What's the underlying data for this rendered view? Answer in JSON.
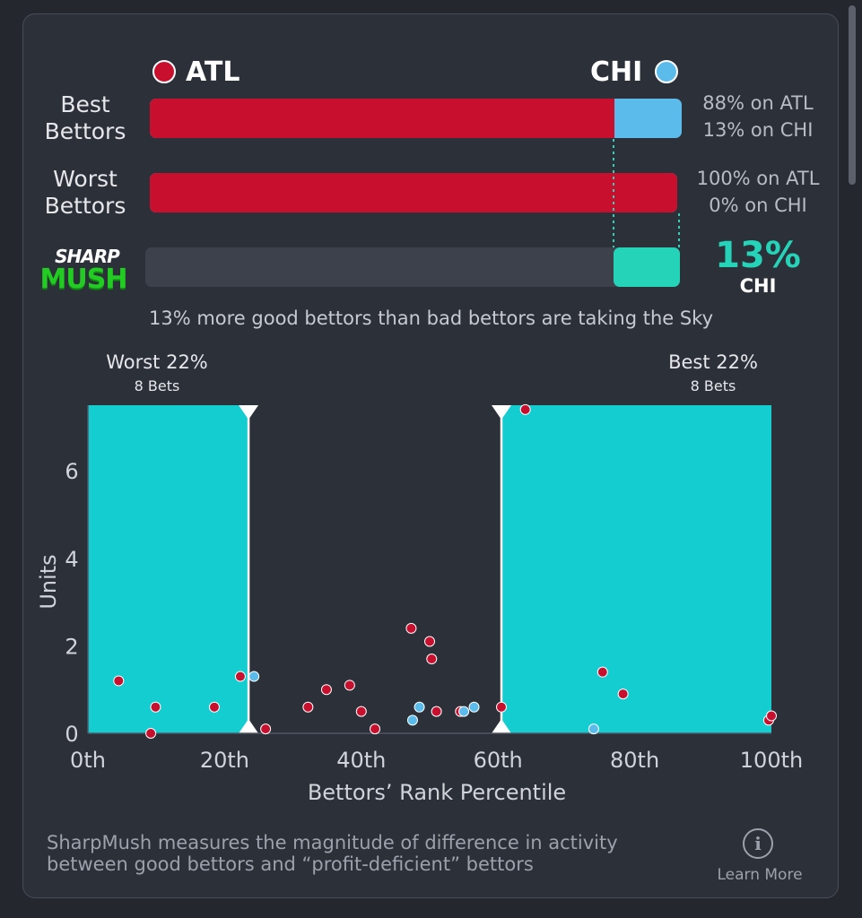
{
  "header": {
    "team_left": "ATL",
    "team_right": "CHI",
    "team_left_color": "#c8102e",
    "team_right_color": "#5bbcec"
  },
  "rows": {
    "best_label_line1": "Best",
    "best_label_line2": "Bettors",
    "best_left_pct": 0.88,
    "best_text_line1": "88% on ATL",
    "best_text_line2": "13% on CHI",
    "worst_label_line1": "Worst",
    "worst_label_line2": "Bettors",
    "worst_left_pct": 1.0,
    "worst_text_line1": "100% on ATL",
    "worst_text_line2": "0% on CHI",
    "mush_pct": 0.13,
    "mush_value": "13%",
    "mush_team": "CHI",
    "mush_color": "#25d3b8",
    "logo_line1": "SHARP",
    "logo_line2": "MUSH"
  },
  "summary": "13% more good bettors than bad bettors are taking the Sky",
  "chart_data": {
    "type": "scatter",
    "xlabel": "Bettors’ Rank Percentile",
    "ylabel": "Units",
    "xlim": [
      0,
      100
    ],
    "ylim": [
      0,
      7.5
    ],
    "x_ticks": [
      0,
      20,
      40,
      60,
      80,
      100
    ],
    "x_tick_labels": [
      "0th",
      "20th",
      "40th",
      "60th",
      "80th",
      "100th"
    ],
    "y_ticks": [
      0,
      2,
      4,
      6
    ],
    "y_tick_labels": [
      "0",
      "2",
      "4",
      "6"
    ],
    "grid": false,
    "regions": [
      {
        "label": "Worst 22%",
        "sublabel": "8 Bets",
        "x_start": 0,
        "x_end": 23.5,
        "color": "#14cdd0"
      },
      {
        "label": "Best 22%",
        "sublabel": "8 Bets",
        "x_start": 60.5,
        "x_end": 100,
        "color": "#14cdd0"
      }
    ],
    "series": [
      {
        "name": "ATL",
        "color": "#c8102e",
        "points": [
          [
            4.5,
            1.2
          ],
          [
            9.2,
            0.0
          ],
          [
            9.9,
            0.6
          ],
          [
            18.5,
            0.6
          ],
          [
            22.3,
            1.3
          ],
          [
            26.0,
            0.1
          ],
          [
            32.2,
            0.6
          ],
          [
            34.9,
            1.0
          ],
          [
            38.3,
            1.1
          ],
          [
            40.0,
            0.5
          ],
          [
            42.0,
            0.1
          ],
          [
            47.3,
            2.4
          ],
          [
            50.0,
            2.1
          ],
          [
            50.3,
            1.7
          ],
          [
            51.0,
            0.5
          ],
          [
            54.5,
            0.5
          ],
          [
            60.5,
            0.6
          ],
          [
            64.0,
            7.4
          ],
          [
            75.3,
            1.4
          ],
          [
            78.3,
            0.9
          ],
          [
            99.6,
            0.3
          ],
          [
            100.0,
            0.4
          ]
        ]
      },
      {
        "name": "CHI",
        "color": "#5bbcec",
        "points": [
          [
            24.3,
            1.3
          ],
          [
            47.5,
            0.3
          ],
          [
            48.5,
            0.6
          ],
          [
            55.0,
            0.5
          ],
          [
            56.5,
            0.6
          ],
          [
            74.0,
            0.1
          ]
        ]
      }
    ]
  },
  "footer": {
    "text": "SharpMush measures the magnitude of difference in activity between good bettors and “profit-deficient” bettors",
    "learn_more": "Learn More",
    "info_icon": "info-icon"
  }
}
